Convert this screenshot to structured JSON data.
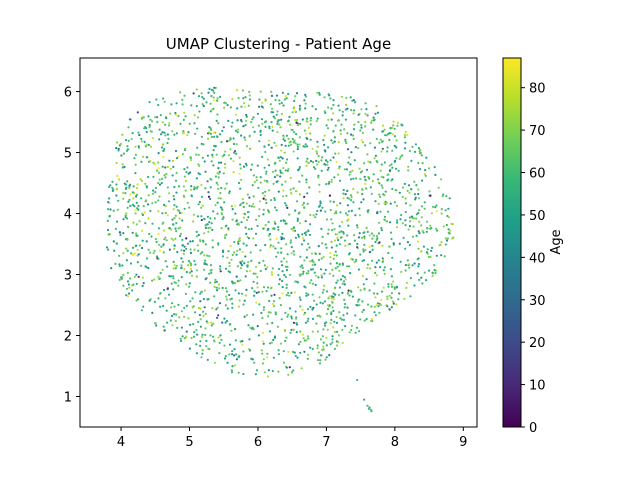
{
  "chart_data": {
    "type": "scatter",
    "title": "UMAP Clustering - Patient Age",
    "xlim": [
      3.4,
      9.2
    ],
    "ylim": [
      0.5,
      6.55
    ],
    "x_ticks": [
      4,
      5,
      6,
      7,
      8,
      9
    ],
    "y_ticks": [
      1,
      2,
      3,
      4,
      5,
      6
    ],
    "grid": false,
    "legend": "none",
    "colormap": "viridis",
    "colormap_stops": [
      "#440154",
      "#482878",
      "#3e4989",
      "#31688e",
      "#26828e",
      "#1f9e89",
      "#35b779",
      "#6ece58",
      "#b5de2b",
      "#fde725"
    ],
    "colorbar": {
      "label": "Age",
      "range": [
        0,
        87
      ],
      "ticks": [
        0,
        10,
        20,
        30,
        40,
        50,
        60,
        70,
        80
      ]
    },
    "cloud": {
      "center": [
        6.2,
        3.85
      ],
      "radius_x": 2.55,
      "radius_y": 2.35,
      "point_count": 2400
    },
    "series": [
      {
        "values": [
          {
            "x": 7.45,
            "y": 1.27,
            "age": 60
          },
          {
            "x": 7.55,
            "y": 0.95,
            "age": 55
          },
          {
            "x": 7.6,
            "y": 0.85,
            "age": 60
          },
          {
            "x": 7.62,
            "y": 0.8,
            "age": 58
          },
          {
            "x": 7.65,
            "y": 0.78,
            "age": 62
          },
          {
            "x": 7.63,
            "y": 0.82,
            "age": 55
          },
          {
            "x": 7.66,
            "y": 0.76,
            "age": 60
          }
        ]
      }
    ],
    "age_distribution": {
      "mean": 60,
      "sd": 11,
      "min": 0,
      "max": 87
    }
  }
}
